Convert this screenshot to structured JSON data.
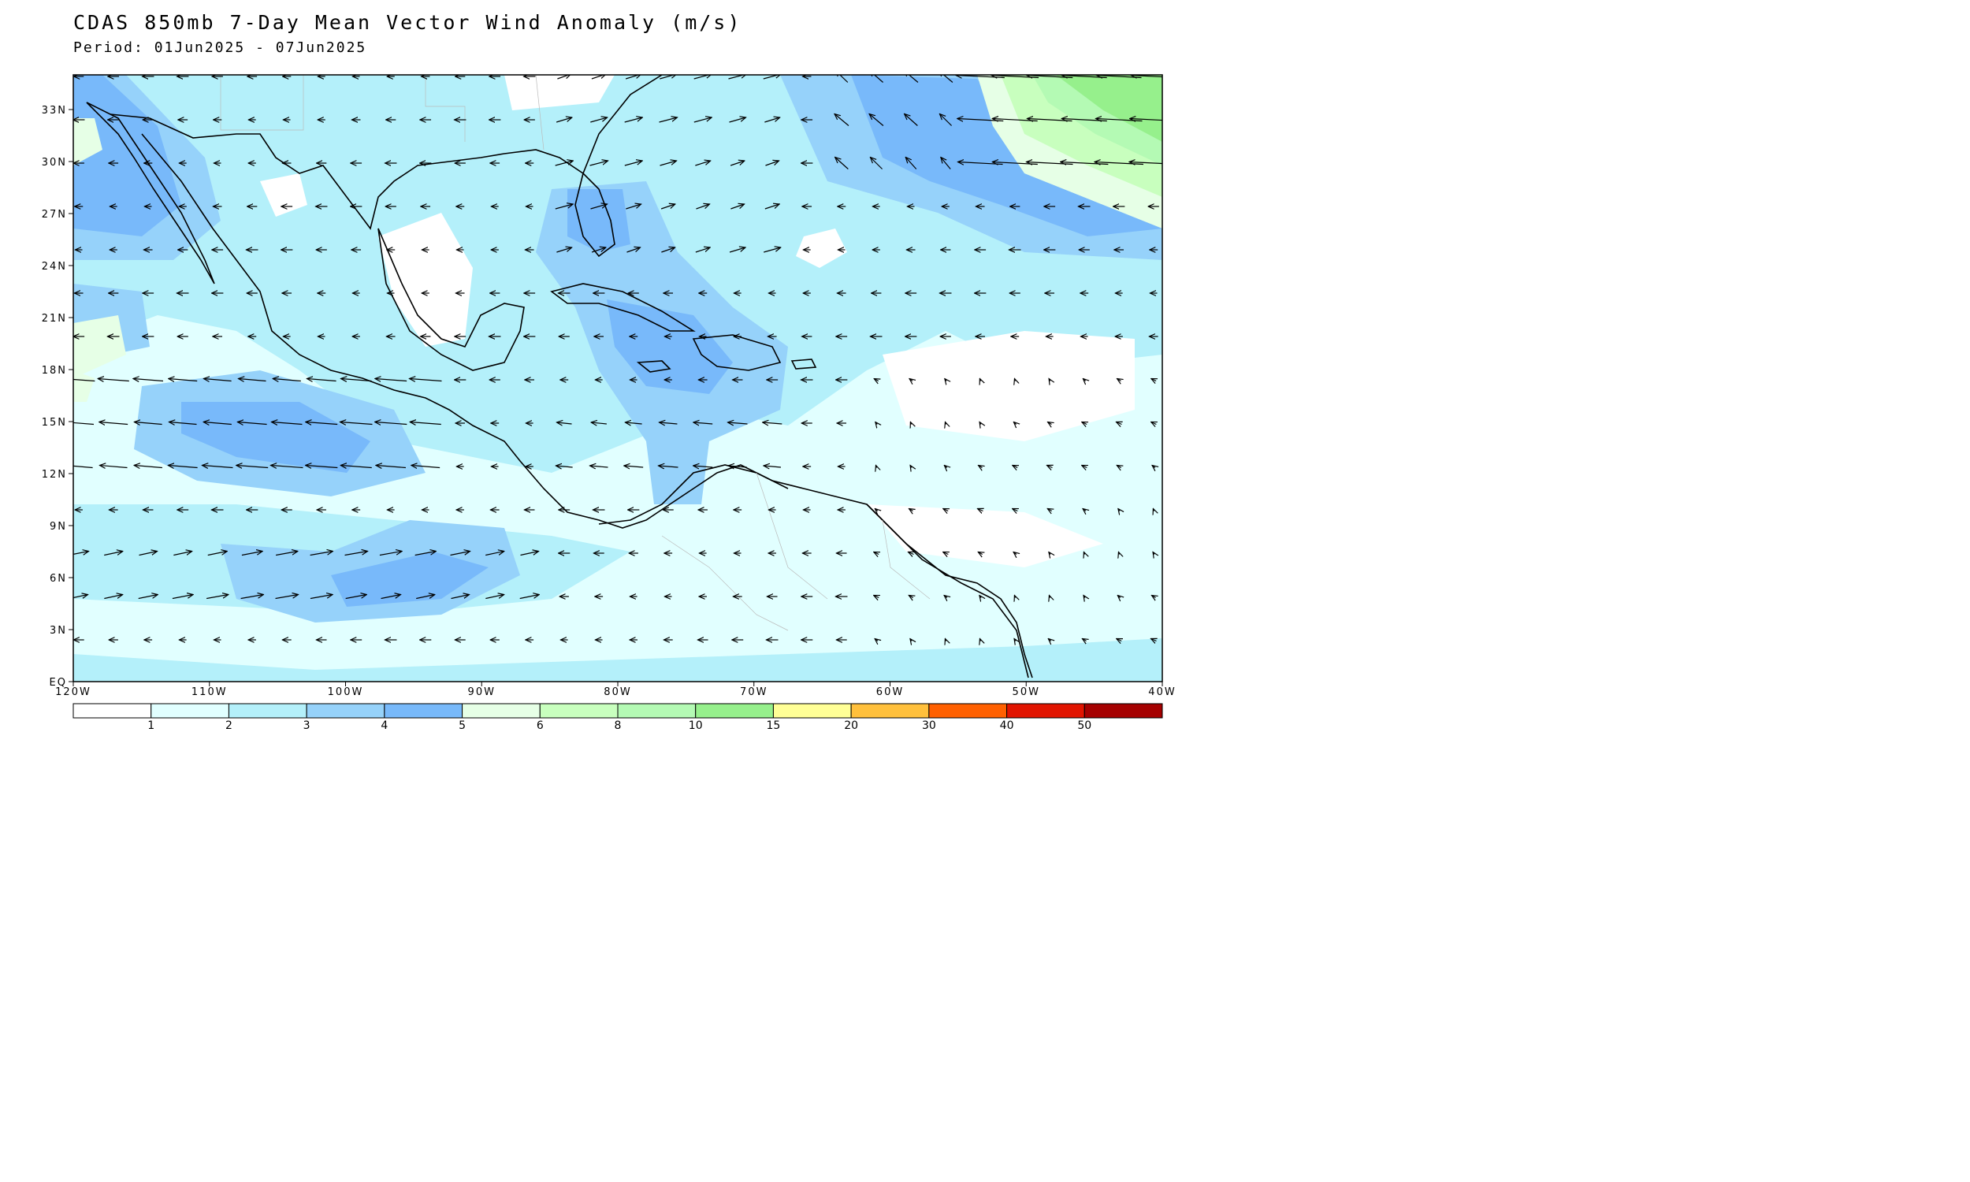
{
  "title": "CDAS 850mb 7-Day Mean Vector Wind Anomaly (m/s)",
  "period": "Period: 01Jun2025 - 07Jun2025",
  "map": {
    "lon_range": [
      -120,
      -40
    ],
    "lat_range": [
      0,
      35
    ],
    "lat_ticks": [
      "33N",
      "30N",
      "27N",
      "24N",
      "21N",
      "18N",
      "15N",
      "12N",
      "9N",
      "6N",
      "3N",
      "EQ"
    ],
    "lat_values": [
      33,
      30,
      27,
      24,
      21,
      18,
      15,
      12,
      9,
      6,
      3,
      0
    ],
    "lon_ticks": [
      "120W",
      "110W",
      "100W",
      "90W",
      "80W",
      "70W",
      "60W",
      "50W",
      "40W"
    ],
    "lon_values": [
      -120,
      -110,
      -100,
      -90,
      -80,
      -70,
      -60,
      -50,
      -40
    ]
  },
  "colorbar": {
    "labels": [
      "1",
      "2",
      "3",
      "4",
      "5",
      "6",
      "8",
      "10",
      "15",
      "20",
      "30",
      "40",
      "50"
    ],
    "colors": [
      "#ffffff",
      "#e1ffff",
      "#b4f0fa",
      "#96d2fa",
      "#78b9fa",
      "#e6ffe6",
      "#c8ffbe",
      "#b4fab4",
      "#96f08c",
      "#ffff96",
      "#ffc03c",
      "#ff6000",
      "#e11400",
      "#a50000"
    ]
  }
}
